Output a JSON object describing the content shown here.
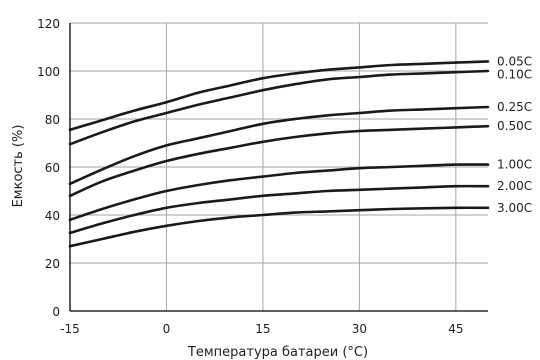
{
  "chart_data": {
    "type": "line",
    "title": "",
    "xlabel": "Температура батареи (°C)",
    "ylabel": "Емкость (%)",
    "xlim": [
      -15,
      50
    ],
    "ylim": [
      0,
      120
    ],
    "x_ticks": [
      -15,
      0,
      15,
      30,
      45
    ],
    "y_ticks": [
      0,
      20,
      40,
      60,
      80,
      100,
      120
    ],
    "grid": true,
    "legend": "right-inline",
    "line_color": "#1a1a1a",
    "grid_color": "#a6a6a6",
    "series": [
      {
        "name": "0.05C",
        "x": [
          -15,
          -10,
          -5,
          0,
          5,
          10,
          15,
          20,
          25,
          30,
          35,
          40,
          45,
          50
        ],
        "values": [
          75.5,
          79.5,
          83.5,
          87,
          91,
          94,
          97,
          99,
          100.5,
          101.5,
          102.5,
          103,
          103.5,
          104
        ]
      },
      {
        "name": "0.10C",
        "x": [
          -15,
          -10,
          -5,
          0,
          5,
          10,
          15,
          20,
          25,
          30,
          35,
          40,
          45,
          50
        ],
        "values": [
          69.5,
          74.5,
          79,
          82.5,
          86,
          89,
          92,
          94.5,
          96.5,
          97.5,
          98.5,
          99,
          99.5,
          100
        ]
      },
      {
        "name": "0.25C",
        "x": [
          -15,
          -10,
          -5,
          0,
          5,
          10,
          15,
          20,
          25,
          30,
          35,
          40,
          45,
          50
        ],
        "values": [
          53,
          59,
          64.5,
          69,
          72,
          75,
          78,
          80,
          81.5,
          82.5,
          83.5,
          84,
          84.5,
          85
        ]
      },
      {
        "name": "0.50C",
        "x": [
          -15,
          -10,
          -5,
          0,
          5,
          10,
          15,
          20,
          25,
          30,
          35,
          40,
          45,
          50
        ],
        "values": [
          48,
          54,
          58.5,
          62.5,
          65.5,
          68,
          70.5,
          72.5,
          74,
          75,
          75.5,
          76,
          76.5,
          77
        ]
      },
      {
        "name": "1.00C",
        "x": [
          -15,
          -10,
          -5,
          0,
          5,
          10,
          15,
          20,
          25,
          30,
          35,
          40,
          45,
          50
        ],
        "values": [
          38,
          42.5,
          46.5,
          50,
          52.5,
          54.5,
          56,
          57.5,
          58.5,
          59.5,
          60,
          60.5,
          61,
          61
        ]
      },
      {
        "name": "2.00C",
        "x": [
          -15,
          -10,
          -5,
          0,
          5,
          10,
          15,
          20,
          25,
          30,
          35,
          40,
          45,
          50
        ],
        "values": [
          32.5,
          36.5,
          40,
          43,
          45,
          46.5,
          48,
          49,
          50,
          50.5,
          51,
          51.5,
          52,
          52
        ]
      },
      {
        "name": "3.00C",
        "x": [
          -15,
          -10,
          -5,
          0,
          5,
          10,
          15,
          20,
          25,
          30,
          35,
          40,
          45,
          50
        ],
        "values": [
          27,
          30,
          33,
          35.5,
          37.5,
          39,
          40,
          41,
          41.5,
          42,
          42.5,
          42.8,
          43,
          43
        ]
      }
    ]
  }
}
